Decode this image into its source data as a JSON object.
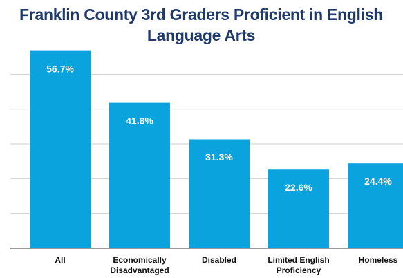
{
  "chart_data": {
    "type": "bar",
    "title": "Franklin County 3rd Graders Proficient in English Language Arts",
    "categories": [
      "All",
      "Economically Disadvantaged",
      "Disabled",
      "Limited English Proficiency",
      "Homeless"
    ],
    "values": [
      56.7,
      41.8,
      31.3,
      22.6,
      24.4
    ],
    "value_labels": [
      "56.7%",
      "41.8%",
      "31.3%",
      "22.6%",
      "24.4%"
    ],
    "color": "#0ba3dd",
    "ylim": [
      0,
      60
    ],
    "yticks": [
      0,
      10,
      20,
      30,
      40,
      50
    ],
    "grid": true
  }
}
